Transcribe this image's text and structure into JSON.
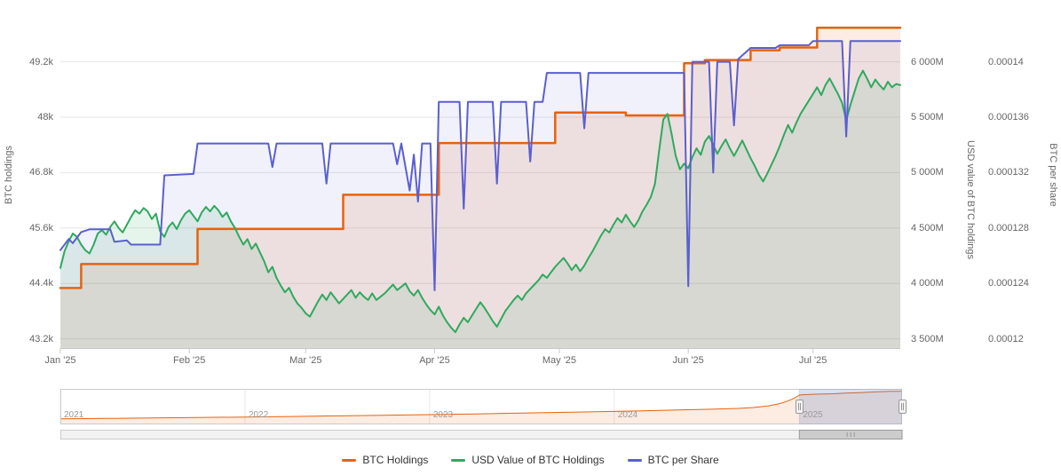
{
  "chart_data": {
    "type": "line",
    "title": "",
    "x_axis": {
      "tick_labels": [
        "Jan '25",
        "Feb '25",
        "Mar '25",
        "Apr '25",
        "May '25",
        "Jun '25",
        "Jul '25"
      ],
      "tick_days": [
        0,
        31,
        59,
        90,
        120,
        151,
        181
      ],
      "range_days": [
        0,
        202
      ]
    },
    "axes": {
      "left": {
        "title": "BTC holdings",
        "tick_labels": [
          "43.2k",
          "44.4k",
          "45.6k",
          "46.8k",
          "48k",
          "49.2k"
        ],
        "tick_values": [
          43200,
          44400,
          45600,
          46800,
          48000,
          49200
        ],
        "min": 43000,
        "max": 50347
      },
      "right_usd": {
        "title": "USD value of BTC holdings",
        "tick_labels": [
          "3 500M",
          "4 000M",
          "4 500M",
          "5 000M",
          "5 500M",
          "6 000M"
        ],
        "tick_values": [
          3500,
          4000,
          4500,
          5000,
          5500,
          6000
        ],
        "min": 3416.7,
        "max": 6477.7
      },
      "right_share": {
        "title": "BTC per share",
        "tick_labels": [
          "0.00012",
          "0.000124",
          "0.000128",
          "0.000132",
          "0.000136",
          "0.00014"
        ],
        "tick_values": [
          0.00012,
          0.000124,
          0.000128,
          0.000132,
          0.000136,
          0.00014
        ],
        "min": 0.00011933,
        "max": 0.00014382
      }
    },
    "series": [
      {
        "id": "btc-holdings",
        "name": "BTC Holdings",
        "axis": "left",
        "step": true,
        "color": "#e8620d",
        "fill": "rgba(232,98,13,0.12)",
        "width": 2.5,
        "points": [
          [
            0,
            44300
          ],
          [
            5,
            44820
          ],
          [
            33,
            45580
          ],
          [
            68,
            46320
          ],
          [
            91,
            47440
          ],
          [
            119,
            48100
          ],
          [
            136,
            48040
          ],
          [
            150,
            49170
          ],
          [
            155,
            49240
          ],
          [
            166,
            49450
          ],
          [
            173,
            49510
          ],
          [
            182,
            49940
          ],
          [
            202,
            49940
          ]
        ]
      },
      {
        "id": "usd-value",
        "name": "USD Value of BTC Holdings",
        "axis": "right_usd",
        "step": false,
        "color": "#2fa95e",
        "fill": "rgba(47,169,94,0.12)",
        "width": 2,
        "start_day": 0,
        "step_days": 1,
        "values": [
          4140,
          4290,
          4380,
          4450,
          4420,
          4350,
          4300,
          4270,
          4350,
          4450,
          4480,
          4440,
          4510,
          4560,
          4500,
          4460,
          4530,
          4600,
          4660,
          4630,
          4680,
          4650,
          4580,
          4630,
          4470,
          4420,
          4510,
          4550,
          4490,
          4570,
          4630,
          4660,
          4610,
          4560,
          4640,
          4690,
          4650,
          4700,
          4660,
          4600,
          4640,
          4560,
          4500,
          4420,
          4350,
          4400,
          4310,
          4360,
          4280,
          4200,
          4100,
          4150,
          4050,
          3980,
          3920,
          3960,
          3880,
          3820,
          3780,
          3730,
          3700,
          3770,
          3840,
          3900,
          3850,
          3920,
          3870,
          3820,
          3860,
          3900,
          3940,
          3870,
          3920,
          3880,
          3850,
          3910,
          3850,
          3880,
          3910,
          3950,
          3990,
          3940,
          3970,
          4000,
          3930,
          3890,
          3940,
          3870,
          3810,
          3760,
          3720,
          3790,
          3710,
          3650,
          3600,
          3560,
          3630,
          3690,
          3650,
          3710,
          3770,
          3830,
          3780,
          3720,
          3660,
          3610,
          3680,
          3750,
          3800,
          3850,
          3890,
          3850,
          3910,
          3950,
          3990,
          4030,
          4080,
          4050,
          4100,
          4150,
          4190,
          4230,
          4180,
          4120,
          4170,
          4110,
          4160,
          4230,
          4290,
          4360,
          4430,
          4490,
          4460,
          4530,
          4590,
          4550,
          4620,
          4560,
          4510,
          4570,
          4650,
          4710,
          4780,
          4900,
          5200,
          5480,
          5530,
          5350,
          5150,
          5030,
          5080,
          5040,
          5140,
          5220,
          5160,
          5280,
          5330,
          5250,
          5170,
          5240,
          5300,
          5220,
          5150,
          5220,
          5290,
          5210,
          5130,
          5060,
          4980,
          4920,
          4990,
          5070,
          5150,
          5240,
          5340,
          5430,
          5360,
          5450,
          5530,
          5590,
          5650,
          5710,
          5770,
          5700,
          5790,
          5850,
          5780,
          5710,
          5630,
          5470,
          5610,
          5730,
          5850,
          5920,
          5850,
          5770,
          5840,
          5790,
          5750,
          5820,
          5770,
          5800,
          5790
        ]
      },
      {
        "id": "btc-per-share",
        "name": "BTC per Share",
        "axis": "right_share",
        "step": false,
        "color": "#5a5fd0",
        "fill": "rgba(90,95,208,0.09)",
        "width": 2,
        "points": [
          [
            0,
            0.0001264
          ],
          [
            2,
            0.0001272
          ],
          [
            3,
            0.0001269
          ],
          [
            5,
            0.0001277
          ],
          [
            7,
            0.0001279
          ],
          [
            12,
            0.0001279
          ],
          [
            13,
            0.000127
          ],
          [
            16,
            0.0001271
          ],
          [
            17,
            0.0001268
          ],
          [
            24,
            0.0001268
          ],
          [
            25,
            0.0001318
          ],
          [
            32,
            0.0001319
          ],
          [
            33,
            0.0001341
          ],
          [
            50,
            0.0001341
          ],
          [
            51,
            0.0001324
          ],
          [
            52,
            0.0001341
          ],
          [
            63,
            0.0001341
          ],
          [
            64,
            0.0001312
          ],
          [
            65,
            0.0001341
          ],
          [
            80,
            0.0001341
          ],
          [
            81,
            0.0001326
          ],
          [
            82,
            0.0001341
          ],
          [
            84,
            0.0001307
          ],
          [
            85,
            0.0001333
          ],
          [
            86,
            0.0001299
          ],
          [
            87,
            0.0001341
          ],
          [
            89,
            0.0001341
          ],
          [
            90,
            0.0001235
          ],
          [
            91,
            0.0001371
          ],
          [
            96,
            0.0001371
          ],
          [
            97,
            0.0001294
          ],
          [
            98,
            0.0001371
          ],
          [
            104,
            0.0001371
          ],
          [
            105,
            0.0001312
          ],
          [
            106,
            0.0001371
          ],
          [
            112,
            0.0001371
          ],
          [
            113,
            0.0001328
          ],
          [
            114,
            0.0001371
          ],
          [
            116,
            0.0001371
          ],
          [
            117,
            0.0001392
          ],
          [
            125,
            0.0001392
          ],
          [
            126,
            0.0001352
          ],
          [
            127,
            0.0001392
          ],
          [
            150,
            0.0001392
          ],
          [
            151,
            0.0001238
          ],
          [
            152,
            0.00014
          ],
          [
            156,
            0.00014
          ],
          [
            157,
            0.000132
          ],
          [
            158,
            0.00014
          ],
          [
            161,
            0.00014
          ],
          [
            162,
            0.0001354
          ],
          [
            163,
            0.0001402
          ],
          [
            166,
            0.000141
          ],
          [
            172,
            0.000141
          ],
          [
            173,
            0.0001412
          ],
          [
            180,
            0.0001412
          ],
          [
            181,
            0.0001415
          ],
          [
            188,
            0.0001415
          ],
          [
            189,
            0.0001346
          ],
          [
            190,
            0.0001415
          ],
          [
            202,
            0.0001415
          ]
        ]
      }
    ],
    "navigator": {
      "year_labels": [
        "2021",
        "2022",
        "2023",
        "2024",
        "2025"
      ],
      "year_days": [
        0,
        365,
        730,
        1095,
        1461
      ],
      "range_days": [
        0,
        1664
      ],
      "selected_days": [
        1461,
        1664
      ],
      "value_max": 51000,
      "series_points": [
        [
          0,
          8500
        ],
        [
          90,
          9000
        ],
        [
          180,
          9600
        ],
        [
          270,
          10300
        ],
        [
          365,
          11200
        ],
        [
          455,
          12000
        ],
        [
          545,
          12900
        ],
        [
          635,
          13800
        ],
        [
          730,
          14800
        ],
        [
          820,
          15900
        ],
        [
          910,
          17000
        ],
        [
          1000,
          18200
        ],
        [
          1095,
          19600
        ],
        [
          1150,
          20500
        ],
        [
          1220,
          21700
        ],
        [
          1280,
          22800
        ],
        [
          1340,
          24200
        ],
        [
          1370,
          25500
        ],
        [
          1400,
          28000
        ],
        [
          1420,
          31000
        ],
        [
          1435,
          34500
        ],
        [
          1448,
          38500
        ],
        [
          1455,
          41500
        ],
        [
          1461,
          44300
        ],
        [
          1466,
          44820
        ],
        [
          1494,
          45580
        ],
        [
          1529,
          46320
        ],
        [
          1552,
          47440
        ],
        [
          1580,
          48100
        ],
        [
          1611,
          49170
        ],
        [
          1643,
          49940
        ],
        [
          1664,
          49940
        ]
      ]
    },
    "colors": {
      "gridline": "#e6e6e6",
      "axis_line": "#c8c8c8",
      "tick_label": "#666666",
      "axis_title": "#666666",
      "legend_text": "#333333",
      "nav_label": "#999999",
      "nav_mask": "rgba(102,133,194,0.25)",
      "nav_outline": "#cccccc",
      "scrollbar_track": "#f2f2f2",
      "scrollbar_thumb": "#cccccc",
      "scrollbar_border": "#999999"
    },
    "legend_position": "bottom-center",
    "grid": "horizontal-only"
  }
}
